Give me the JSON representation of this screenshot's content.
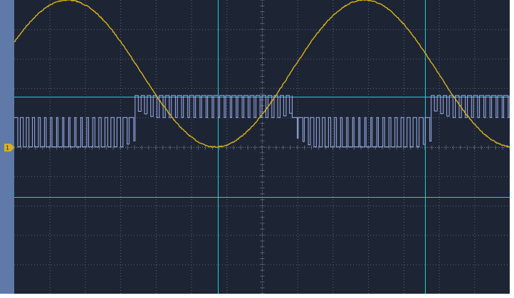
{
  "display": {
    "background_color": "#1d2535",
    "sidebar_color": "#5f79a8",
    "grid_color": "#5a6578",
    "cursor_color": "#1fd0d8",
    "grid": {
      "divisions_x": 14,
      "divisions_y": 10,
      "subdivisions": 5
    }
  },
  "channels": [
    {
      "id": "CH1",
      "marker_label": "1",
      "marker_icon": "ground-level-marker-icon",
      "color": "#d9b21c",
      "waveform": "sine",
      "cycles_on_screen": 1.67,
      "amplitude_divisions": 2.5
    },
    {
      "id": "CH2",
      "color": "#9eb1ea",
      "waveform": "pwm",
      "pulse_periods_on_screen": 82,
      "level_high_divisions": 1.75,
      "level_low_divisions": 1.0
    }
  ],
  "cursors": {
    "vertical_time_divisions": [
      5.75,
      11.6
    ],
    "horizontal_level_divisions": [
      1.7,
      -1.7
    ]
  }
}
